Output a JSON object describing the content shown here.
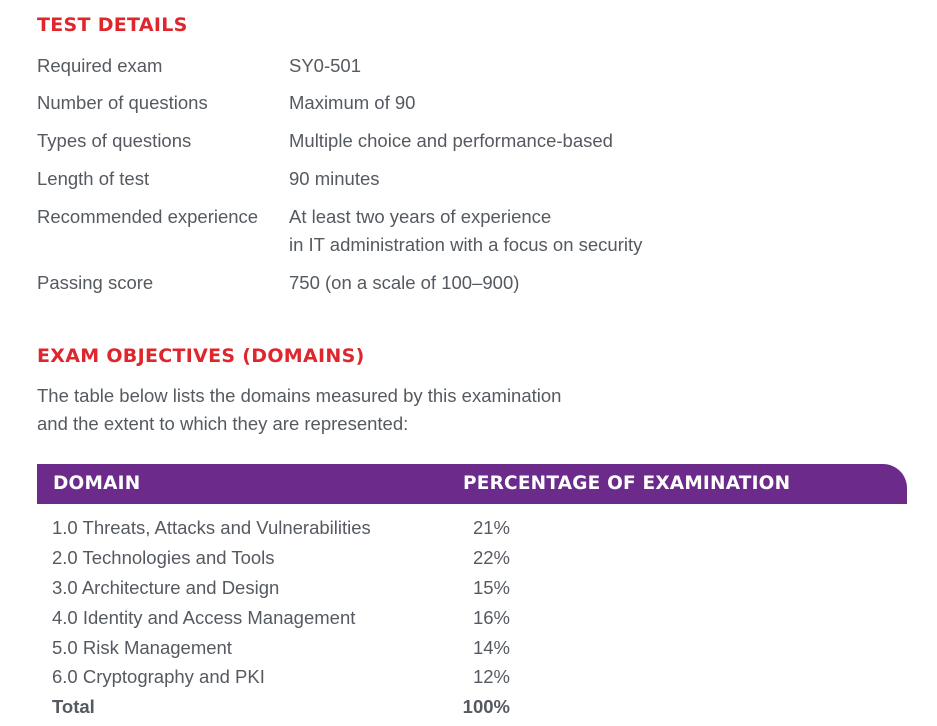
{
  "test_details": {
    "heading": "TEST DETAILS",
    "rows": [
      {
        "label": "Required exam",
        "value": "SY0-501"
      },
      {
        "label": "Number of questions",
        "value": "Maximum of 90"
      },
      {
        "label": "Types of questions",
        "value": "Multiple choice and performance-based"
      },
      {
        "label": "Length of test",
        "value": "90 minutes"
      },
      {
        "label": "Recommended experience",
        "value": "At least two years of experience\nin IT administration with a focus on security"
      },
      {
        "label": "Passing score",
        "value": "750 (on a scale of 100–900)"
      }
    ]
  },
  "exam_objectives": {
    "heading": "EXAM OBJECTIVES (DOMAINS)",
    "intro": "The table below lists the domains measured by this examination\nand the extent to which they are represented:",
    "table": {
      "col_domain": "DOMAIN",
      "col_percentage": "PERCENTAGE OF EXAMINATION",
      "rows": [
        {
          "domain": "1.0 Threats, Attacks and Vulnerabilities",
          "percentage": "21%"
        },
        {
          "domain": "2.0 Technologies and Tools",
          "percentage": "22%"
        },
        {
          "domain": "3.0 Architecture and Design",
          "percentage": "15%"
        },
        {
          "domain": "4.0 Identity and Access Management",
          "percentage": "16%"
        },
        {
          "domain": "5.0 Risk Management",
          "percentage": "14%"
        },
        {
          "domain": "6.0 Cryptography and PKI",
          "percentage": "12%"
        }
      ],
      "total_label": "Total",
      "total_value": "100%"
    }
  },
  "colors": {
    "heading_red": "#e0262d",
    "header_purple": "#6c2b8b",
    "body_text": "#555a60"
  }
}
